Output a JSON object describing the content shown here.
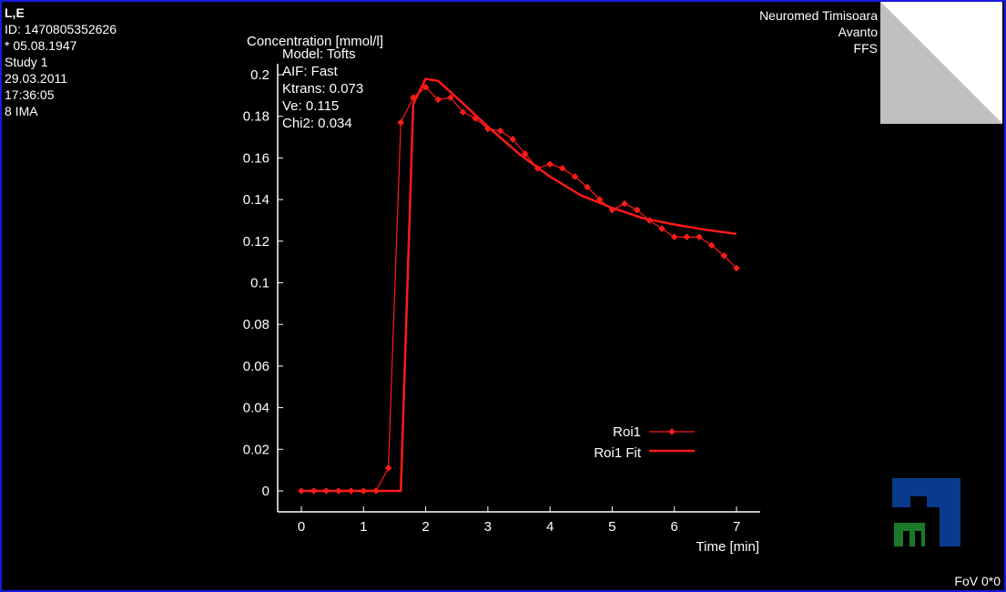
{
  "patient": {
    "name": "L,E",
    "id": "ID: 1470805352626",
    "birth": "* 05.08.1947",
    "study": "Study 1",
    "date": "29.03.2011",
    "time": "17:36:05",
    "images": "8 IMA"
  },
  "site": {
    "institution": "Neuromed Timisoara",
    "scanner": "Avanto",
    "position": "FFS"
  },
  "fov": "FoV 0*0",
  "colors": {
    "series": "#ff1a1a",
    "border": "#1a1ae0",
    "logo_blue": "#0a3a8c",
    "logo_green": "#1a7a2a"
  },
  "chart_data": {
    "type": "line",
    "ylabel": "Concentration [mmol/l]",
    "xlabel": "Time [min]",
    "xlim": [
      0,
      7
    ],
    "ylim": [
      0,
      0.2
    ],
    "xticks": [
      "0",
      "1",
      "2",
      "3",
      "4",
      "5",
      "6",
      "7"
    ],
    "yticks": [
      "0",
      "0.02",
      "0.04",
      "0.06",
      "0.08",
      "0.1",
      "0.12",
      "0.14",
      "0.16",
      "0.18",
      "0.2"
    ],
    "grid": false,
    "legend_position": "bottom-right",
    "model_info": [
      "Model: Tofts",
      "AIF: Fast",
      "Ktrans: 0.073",
      "Ve: 0.115",
      "Chi2: 0.034"
    ],
    "series": [
      {
        "name": "Roi1",
        "style": "line-markers",
        "x": [
          0,
          0.2,
          0.4,
          0.6,
          0.8,
          1.0,
          1.2,
          1.4,
          1.6,
          1.8,
          2.0,
          2.2,
          2.4,
          2.6,
          2.8,
          3.0,
          3.2,
          3.4,
          3.6,
          3.8,
          4.0,
          4.2,
          4.4,
          4.6,
          4.8,
          5.0,
          5.2,
          5.4,
          5.6,
          5.8,
          6.0,
          6.2,
          6.4,
          6.6,
          6.8,
          7.0
        ],
        "y": [
          0,
          0,
          0,
          0,
          0,
          0,
          0,
          0.011,
          0.177,
          0.189,
          0.194,
          0.188,
          0.189,
          0.182,
          0.179,
          0.174,
          0.173,
          0.169,
          0.162,
          0.155,
          0.157,
          0.155,
          0.151,
          0.146,
          0.14,
          0.135,
          0.138,
          0.135,
          0.13,
          0.126,
          0.122,
          0.122,
          0.122,
          0.118,
          0.113,
          0.107
        ]
      },
      {
        "name": "Roi1 Fit",
        "style": "line",
        "x": [
          0,
          1.6,
          1.8,
          2.0,
          2.2,
          2.5,
          3.0,
          3.5,
          4.0,
          4.5,
          5.0,
          5.5,
          6.0,
          6.5,
          7.0
        ],
        "y": [
          0,
          0,
          0.186,
          0.198,
          0.197,
          0.189,
          0.175,
          0.162,
          0.151,
          0.142,
          0.136,
          0.131,
          0.128,
          0.1255,
          0.1235
        ]
      }
    ]
  }
}
